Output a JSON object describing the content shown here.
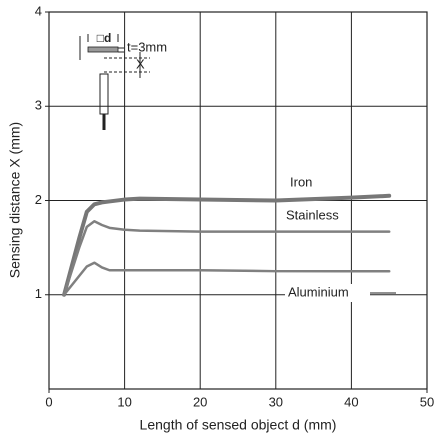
{
  "chart_data": {
    "type": "line",
    "x_label": "Length of sensed object d (mm)",
    "y_label": "Sensing distance X (mm)",
    "inset_labels": [
      "□d",
      "t=3mm",
      "X"
    ],
    "x": [
      2,
      4,
      5,
      6,
      7,
      8,
      10,
      12,
      20,
      30,
      40,
      45
    ],
    "series": [
      {
        "name": "Iron",
        "color": "#777777",
        "line_width": 4,
        "values": [
          1,
          1.6,
          1.88,
          1.96,
          1.98,
          1.99,
          2.01,
          2.02,
          2.01,
          2.0,
          2.03,
          2.05
        ]
      },
      {
        "name": "Stainless",
        "color": "#808080",
        "line_width": 2.5,
        "values": [
          1,
          1.5,
          1.72,
          1.78,
          1.74,
          1.71,
          1.69,
          1.68,
          1.67,
          1.67,
          1.67,
          1.67
        ]
      },
      {
        "name": "Aluminium",
        "color": "#808080",
        "line_width": 2.5,
        "values": [
          1,
          1.2,
          1.3,
          1.34,
          1.29,
          1.26,
          1.26,
          1.26,
          1.26,
          1.25,
          1.25,
          1.25
        ]
      }
    ],
    "xlim": [
      0,
      50
    ],
    "ylim": [
      0,
      4
    ],
    "xticks": [
      0,
      10,
      20,
      30,
      40,
      50
    ],
    "yticks": [
      1,
      2,
      3,
      4
    ],
    "grid": true
  }
}
